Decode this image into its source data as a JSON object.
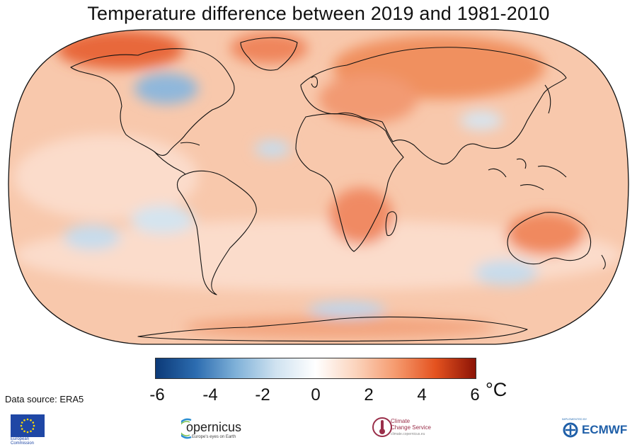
{
  "title": "Temperature difference between 2019 and 1981-2010",
  "colorbar": {
    "ticks": [
      "-6",
      "-4",
      "-2",
      "0",
      "2",
      "4",
      "6"
    ],
    "unit": "°C",
    "range": [
      -6,
      6
    ],
    "colors": [
      "#0c3a78",
      "#2c6cb0",
      "#7fb1d8",
      "#cfe2f0",
      "#ffffff",
      "#fbd4bd",
      "#f59a6e",
      "#e4521f",
      "#8c1306"
    ]
  },
  "data_source": "Data source: ERA5",
  "logos": {
    "eu": {
      "line1": "European",
      "line2": "Commission"
    },
    "copernicus": {
      "word": "opernicus",
      "tagline": "Europe's eyes on Earth"
    },
    "c3s": {
      "line1": "Climate",
      "line2": "Change Service",
      "url": "climate.copernicus.eu"
    },
    "ecmwf": {
      "small": "IMPLEMENTED BY",
      "word": "ECMWF"
    }
  },
  "map_colors": {
    "base": "#f8c8ac",
    "ocean_light": "#fbdccb",
    "warm": "#f29a72",
    "hot": "#e8683b",
    "cool": "#c7dcec",
    "cold": "#8fb7db",
    "coast": "#111111"
  }
}
